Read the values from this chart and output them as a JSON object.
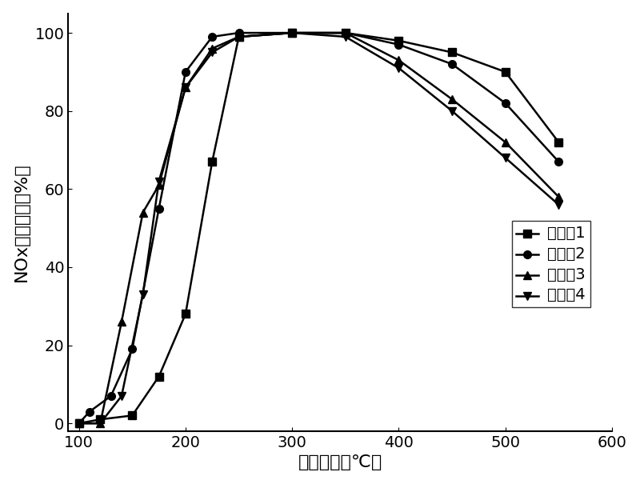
{
  "series": [
    {
      "label": "实施例1",
      "marker": "s",
      "x": [
        100,
        120,
        150,
        175,
        200,
        225,
        250,
        300,
        350,
        400,
        450,
        500,
        550
      ],
      "y": [
        0,
        1,
        2,
        12,
        28,
        67,
        99,
        100,
        100,
        98,
        95,
        90,
        72
      ]
    },
    {
      "label": "实施例2",
      "marker": "o",
      "x": [
        100,
        110,
        130,
        150,
        175,
        200,
        225,
        250,
        300,
        350,
        400,
        450,
        500,
        550
      ],
      "y": [
        0,
        3,
        7,
        19,
        55,
        90,
        99,
        100,
        100,
        100,
        97,
        92,
        82,
        67
      ]
    },
    {
      "label": "实施例3",
      "marker": "^",
      "x": [
        100,
        120,
        140,
        160,
        175,
        200,
        225,
        250,
        300,
        350,
        400,
        450,
        500,
        550
      ],
      "y": [
        0,
        0,
        26,
        54,
        61,
        86,
        96,
        99,
        100,
        100,
        93,
        83,
        72,
        58
      ]
    },
    {
      "label": "实施例4",
      "marker": "v",
      "x": [
        100,
        120,
        140,
        160,
        175,
        200,
        225,
        250,
        300,
        350,
        400,
        450,
        500,
        550
      ],
      "y": [
        0,
        0,
        7,
        33,
        62,
        86,
        95,
        99,
        100,
        99,
        91,
        80,
        68,
        56
      ]
    }
  ],
  "xlabel": "反应温度（℃）",
  "ylabel": "NOx转化效率（%）",
  "xlim": [
    90,
    600
  ],
  "ylim": [
    -2,
    105
  ],
  "xticks": [
    100,
    200,
    300,
    400,
    500,
    600
  ],
  "yticks": [
    0,
    20,
    40,
    60,
    80,
    100
  ],
  "line_color": "black",
  "linewidth": 1.8,
  "markersize": 7,
  "font_size": 14,
  "tick_font_size": 14,
  "label_font_size": 16
}
